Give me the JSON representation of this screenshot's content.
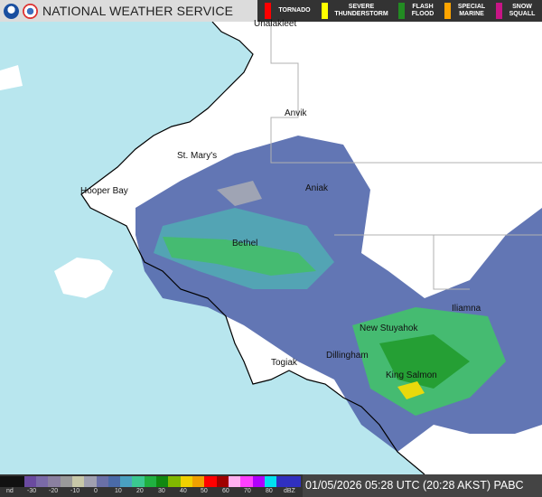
{
  "header": {
    "title": "NATIONAL WEATHER SERVICE",
    "logos": [
      "noaa-logo",
      "nws-logo"
    ]
  },
  "warnings": [
    {
      "label": "TORNADO",
      "color": "#ff0000"
    },
    {
      "label": "SEVERE THUNDERSTORM",
      "color": "#ffff00"
    },
    {
      "label": "FLASH FLOOD",
      "color": "#228b22"
    },
    {
      "label": "SPECIAL MARINE",
      "color": "#ffa500"
    },
    {
      "label": "SNOW SQUALL",
      "color": "#c71585"
    }
  ],
  "cities": [
    "Unalakleet",
    "Anvik",
    "St. Mary's",
    "Hooper Bay",
    "Aniak",
    "Bethel",
    "Iliamna",
    "New Stuyahok",
    "Dillingham",
    "King Salmon",
    "Togiak"
  ],
  "legend": {
    "labels": [
      "nd",
      "-30",
      "-20",
      "-10",
      "0",
      "10",
      "20",
      "30",
      "40",
      "50",
      "60",
      "70",
      "80",
      "dBZ"
    ]
  },
  "timestamp": "01/05/2026 05:28 UTC (20:28 AKST)  PABC",
  "colors": {
    "ocean": "#b8e6ee",
    "land": "#ffffff",
    "header_dark": "#333333"
  }
}
